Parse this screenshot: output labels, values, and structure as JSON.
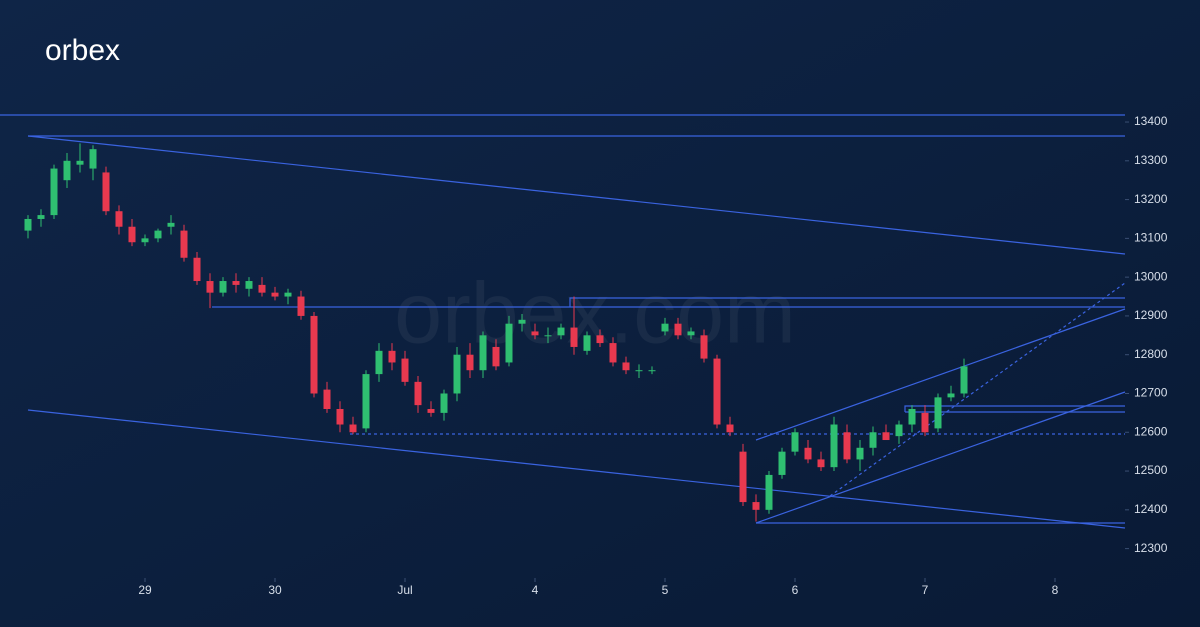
{
  "logo": "orbex",
  "watermark": "orbex.com",
  "chart_data": {
    "type": "candlestick",
    "up_color": "#2fbf71",
    "down_color": "#e8394f",
    "open": [
      13120,
      13150,
      13160,
      13250,
      13290,
      13280,
      13270,
      13170,
      13130,
      13090,
      13100,
      13130,
      13120,
      13050,
      12990,
      12960,
      12990,
      12970,
      12980,
      12960,
      12950,
      12950,
      12900,
      12710,
      12660,
      12620,
      12610,
      12750,
      12810,
      12790,
      12730,
      12660,
      12650,
      12700,
      12800,
      12760,
      12820,
      12780,
      12880,
      12860,
      12850,
      12850,
      12870,
      12810,
      12850,
      12830,
      12780,
      12760,
      12760,
      12860,
      12880,
      12850,
      12850,
      12790,
      12620,
      12550,
      12420,
      12400,
      12490,
      12550,
      12560,
      12530,
      12510,
      12600,
      12530,
      12560,
      12600,
      12590,
      12620,
      12650,
      12610,
      12690,
      12700
    ],
    "high": [
      13160,
      13175,
      13290,
      13320,
      13345,
      13340,
      13285,
      13185,
      13150,
      13110,
      13125,
      13160,
      13135,
      13065,
      13010,
      13000,
      13010,
      13000,
      13000,
      12975,
      12970,
      12965,
      12910,
      12730,
      12680,
      12640,
      12760,
      12830,
      12830,
      12810,
      12745,
      12680,
      12710,
      12820,
      12830,
      12860,
      12840,
      12900,
      12905,
      12880,
      12870,
      12880,
      12950,
      12860,
      12865,
      12845,
      12795,
      12775,
      12770,
      12895,
      12895,
      12870,
      12865,
      12800,
      12640,
      12570,
      12440,
      12500,
      12560,
      12610,
      12580,
      12550,
      12640,
      12620,
      12580,
      12615,
      12620,
      12630,
      12670,
      12670,
      12700,
      12720,
      12790
    ],
    "low": [
      13100,
      13130,
      13150,
      13230,
      13270,
      13250,
      13160,
      13110,
      13080,
      13080,
      13090,
      13110,
      13040,
      12980,
      12920,
      12950,
      12960,
      12950,
      12950,
      12940,
      12930,
      12890,
      12690,
      12650,
      12600,
      12595,
      12600,
      12730,
      12760,
      12720,
      12650,
      12640,
      12630,
      12680,
      12740,
      12740,
      12760,
      12770,
      12860,
      12840,
      12830,
      12840,
      12800,
      12800,
      12820,
      12770,
      12750,
      12740,
      12750,
      12850,
      12840,
      12840,
      12780,
      12610,
      12590,
      12410,
      12370,
      12390,
      12480,
      12540,
      12520,
      12500,
      12500,
      12520,
      12500,
      12540,
      12580,
      12570,
      12600,
      12590,
      12600,
      12680,
      12690
    ],
    "close": [
      13150,
      13160,
      13280,
      13300,
      13300,
      13330,
      13170,
      13130,
      13090,
      13100,
      13120,
      13140,
      13050,
      12990,
      12960,
      12990,
      12980,
      12990,
      12960,
      12950,
      12960,
      12900,
      12700,
      12660,
      12620,
      12600,
      12750,
      12810,
      12780,
      12730,
      12670,
      12650,
      12700,
      12800,
      12760,
      12850,
      12770,
      12880,
      12890,
      12850,
      12850,
      12870,
      12820,
      12850,
      12830,
      12780,
      12760,
      12760,
      12760,
      12880,
      12850,
      12860,
      12790,
      12620,
      12600,
      12420,
      12400,
      12490,
      12550,
      12600,
      12530,
      12510,
      12620,
      12530,
      12560,
      12600,
      12580,
      12620,
      12660,
      12600,
      12690,
      12700,
      12770
    ],
    "ylim": [
      12250,
      13480
    ],
    "yticks": [
      12300,
      12400,
      12500,
      12600,
      12700,
      12800,
      12900,
      13000,
      13100,
      13200,
      13300,
      13400
    ],
    "xticks": [
      {
        "value": 9,
        "label": "29"
      },
      {
        "value": 19,
        "label": "30"
      },
      {
        "value": 29,
        "label": "Jul"
      },
      {
        "value": 39,
        "label": "4"
      },
      {
        "value": 49,
        "label": "5"
      },
      {
        "value": 59,
        "label": "6"
      },
      {
        "value": 69,
        "label": "7"
      },
      {
        "value": 79,
        "label": "8"
      }
    ]
  }
}
